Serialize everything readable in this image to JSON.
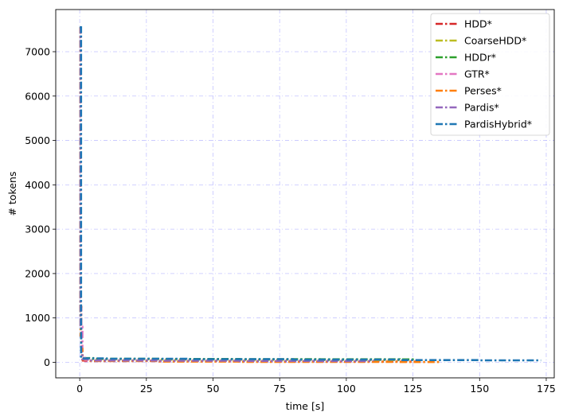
{
  "chart_data": {
    "type": "line",
    "title": "",
    "xlabel": "time [s]",
    "ylabel": "# tokens",
    "xlim": [
      -9,
      178
    ],
    "ylim": [
      -350,
      7950
    ],
    "xticks": [
      0,
      25,
      50,
      75,
      100,
      125,
      150,
      175
    ],
    "yticks": [
      0,
      1000,
      2000,
      3000,
      4000,
      5000,
      6000,
      7000
    ],
    "xtick_labels": [
      "0",
      "25",
      "50",
      "75",
      "100",
      "125",
      "150",
      "175"
    ],
    "ytick_labels": [
      "0",
      "1000",
      "2000",
      "3000",
      "4000",
      "5000",
      "6000",
      "7000"
    ],
    "grid": true,
    "legend_position": "top-right",
    "series": [
      {
        "name": "HDD*",
        "color": "#d62728",
        "x": [
          0,
          0.3,
          0.6,
          0.9,
          1.2,
          2,
          30,
          60,
          90,
          120,
          127
        ],
        "y": [
          7550,
          1250,
          300,
          80,
          40,
          30,
          25,
          20,
          18,
          16,
          15
        ]
      },
      {
        "name": "CoarseHDD*",
        "color": "#bcbd22",
        "x": [
          0,
          0.3,
          0.6,
          1,
          5,
          30,
          60,
          90,
          120,
          124
        ],
        "y": [
          7550,
          1100,
          250,
          90,
          70,
          60,
          55,
          50,
          48,
          46
        ]
      },
      {
        "name": "HDDr*",
        "color": "#2ca02c",
        "x": [
          0,
          0.3,
          0.6,
          1,
          5,
          30,
          60,
          90,
          120,
          126
        ],
        "y": [
          7550,
          1000,
          250,
          95,
          80,
          75,
          70,
          68,
          66,
          65
        ]
      },
      {
        "name": "GTR*",
        "color": "#e377c2",
        "x": [
          0,
          0.3,
          0.6,
          1,
          2,
          30,
          60,
          90,
          110
        ],
        "y": [
          7550,
          1200,
          800,
          100,
          40,
          30,
          25,
          20,
          18
        ]
      },
      {
        "name": "Perses*",
        "color": "#ff7f0e",
        "x": [
          0,
          0.3,
          0.6,
          1,
          3,
          30,
          60,
          90,
          120,
          135
        ],
        "y": [
          7550,
          600,
          300,
          60,
          30,
          15,
          10,
          8,
          6,
          5
        ]
      },
      {
        "name": "Pardis*",
        "color": "#9467bd",
        "x": [
          0,
          0.3,
          0.6,
          1,
          3,
          30,
          60,
          90,
          110
        ],
        "y": [
          7550,
          800,
          200,
          70,
          40,
          35,
          30,
          28,
          27
        ]
      },
      {
        "name": "PardisHybrid*",
        "color": "#1f77b4",
        "x": [
          0,
          0.1,
          0.5,
          1,
          10,
          40,
          80,
          120,
          150,
          173
        ],
        "y": [
          7550,
          7550,
          100,
          90,
          80,
          70,
          60,
          50,
          45,
          45
        ]
      }
    ]
  }
}
